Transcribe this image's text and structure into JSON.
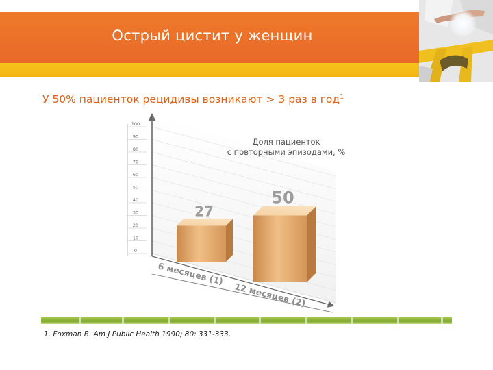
{
  "slide": {
    "title": "Острый цистит у женщин",
    "subtitle": "У 50% пациенток рецидивы возникают > 3 раз в год",
    "subtitle_ref": "1",
    "footnote": "1.   Foxman B. Am J Public Health 1990; 80: 331-333."
  },
  "colors": {
    "header_orange": "#ec7029",
    "header_yellow": "#f5bc17",
    "accent_text": "#d9641e",
    "bar_color": "#e0a466",
    "footer_green": "#8ab43a"
  },
  "chart_data": {
    "type": "bar",
    "title": "Доля пациенток с повторными эпизодами, %",
    "title_lines": [
      "Доля пациенток",
      "с повторными эпизодами, %"
    ],
    "categories": [
      "6 месяцев (1)",
      "12 месяцев (2)"
    ],
    "values": [
      27,
      50
    ],
    "value_labels": [
      "27",
      "50"
    ],
    "ylim": [
      0,
      100
    ],
    "yticks": [
      0,
      10,
      20,
      30,
      40,
      50,
      60,
      70,
      80,
      90,
      100
    ],
    "ytick_labels": [
      "0",
      "10",
      "20",
      "30",
      "40",
      "50",
      "60",
      "70",
      "80",
      "90",
      "100"
    ],
    "grid": true,
    "style": "3d"
  }
}
